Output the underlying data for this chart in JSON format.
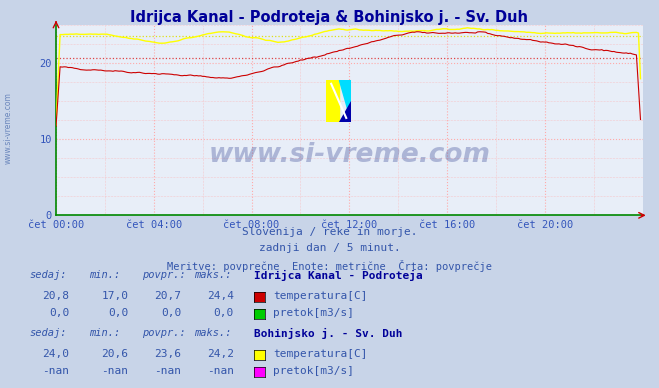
{
  "title": "Idrijca Kanal - Podroteja & Bohinjsko j. - Sv. Duh",
  "title_color": "#000099",
  "bg_color": "#c8d4e8",
  "plot_bg_color": "#e8eef8",
  "grid_color_x": "#ffaaaa",
  "grid_color_y": "#ffaaaa",
  "x_label_color": "#3355bb",
  "y_label_color": "#3355bb",
  "xlim": [
    0,
    288
  ],
  "ylim": [
    0,
    25
  ],
  "yticks": [
    0,
    10,
    20
  ],
  "xtick_labels": [
    "čet 00:00",
    "čet 04:00",
    "čet 08:00",
    "čet 12:00",
    "čet 16:00",
    "čet 20:00"
  ],
  "xtick_positions": [
    0,
    48,
    96,
    144,
    192,
    240
  ],
  "line1_color": "#cc0000",
  "line2_color": "#ffff00",
  "avg1_color": "#dd3333",
  "avg2_color": "#dddd00",
  "avg1_value": 20.7,
  "avg2_value": 23.6,
  "watermark_text": "www.si-vreme.com",
  "watermark_color": "#223388",
  "watermark_alpha": 0.3,
  "subtitle1": "Slovenija / reke in morje.",
  "subtitle2": "zadnji dan / 5 minut.",
  "subtitle3": "Meritve: povprečne  Enote: metrične  Črta: povprečje",
  "subtitle_color": "#3355aa",
  "table_label_color": "#3355aa",
  "table_value_color": "#3355aa",
  "station1_name": "Idrijca Kanal - Podroteja",
  "station2_name": "Bohinjsko j. - Sv. Duh",
  "s1_sedaj": "20,8",
  "s1_min": "17,0",
  "s1_povpr": "20,7",
  "s1_maks": "24,4",
  "s1_sedaj2": "0,0",
  "s1_min2": "0,0",
  "s1_povpr2": "0,0",
  "s1_maks2": "0,0",
  "s2_sedaj": "24,0",
  "s2_min": "20,6",
  "s2_povpr": "23,6",
  "s2_maks": "24,2",
  "s2_sedaj2": "-nan",
  "s2_min2": "-nan",
  "s2_povpr2": "-nan",
  "s2_maks2": "-nan",
  "temp1_color": "#cc0000",
  "pretok1_color": "#00cc00",
  "temp2_color": "#ffff00",
  "pretok2_color": "#ff00ff",
  "axis_color": "#008800",
  "spine_color": "#008800",
  "left_label": "www.si-vreme.com"
}
